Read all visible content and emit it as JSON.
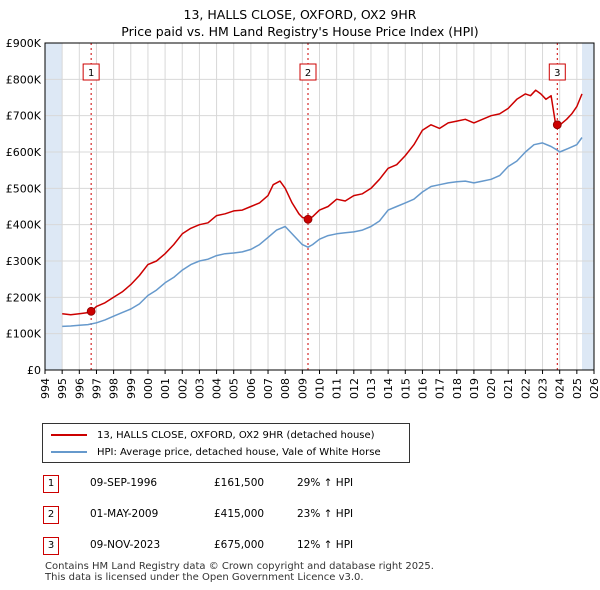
{
  "title": "13, HALLS CLOSE, OXFORD, OX2 9HR",
  "subtitle": "Price paid vs. HM Land Registry's House Price Index (HPI)",
  "colors": {
    "property": "#cc0000",
    "hpi": "#6699cc",
    "shade": "#dde8f5",
    "grid": "#d8d8d8",
    "marker_line": "#cc0000"
  },
  "chart_data": {
    "type": "line",
    "xlim": [
      1994,
      2026
    ],
    "ylim": [
      0,
      900000
    ],
    "x_ticks": [
      "1994",
      "1995",
      "1996",
      "1997",
      "1998",
      "1999",
      "2000",
      "2001",
      "2002",
      "2003",
      "2004",
      "2005",
      "2006",
      "2007",
      "2008",
      "2009",
      "2010",
      "2011",
      "2012",
      "2013",
      "2014",
      "2015",
      "2016",
      "2017",
      "2018",
      "2019",
      "2020",
      "2021",
      "2022",
      "2023",
      "2024",
      "2025",
      "2026"
    ],
    "y_ticks": [
      {
        "value": 0,
        "label": "£0"
      },
      {
        "value": 100000,
        "label": "£100K"
      },
      {
        "value": 200000,
        "label": "£200K"
      },
      {
        "value": 300000,
        "label": "£300K"
      },
      {
        "value": 400000,
        "label": "£400K"
      },
      {
        "value": 500000,
        "label": "£500K"
      },
      {
        "value": 600000,
        "label": "£600K"
      },
      {
        "value": 700000,
        "label": "£700K"
      },
      {
        "value": 800000,
        "label": "£800K"
      },
      {
        "value": 900000,
        "label": "£900K"
      }
    ],
    "data_range": [
      1995,
      2025.3
    ],
    "series": [
      {
        "name": "13, HALLS CLOSE, OXFORD, OX2 9HR (detached house)",
        "x": [
          1995.0,
          1995.5,
          1996.0,
          1996.5,
          1996.69,
          1997.0,
          1997.5,
          1998.0,
          1998.5,
          1999.0,
          1999.5,
          2000.0,
          2000.5,
          2001.0,
          2001.5,
          2002.0,
          2002.5,
          2003.0,
          2003.5,
          2004.0,
          2004.5,
          2005.0,
          2005.5,
          2006.0,
          2006.5,
          2007.0,
          2007.3,
          2007.7,
          2008.0,
          2008.4,
          2008.8,
          2009.0,
          2009.33,
          2009.6,
          2010.0,
          2010.5,
          2011.0,
          2011.5,
          2012.0,
          2012.5,
          2013.0,
          2013.5,
          2014.0,
          2014.5,
          2015.0,
          2015.5,
          2016.0,
          2016.5,
          2017.0,
          2017.5,
          2018.0,
          2018.5,
          2019.0,
          2019.5,
          2020.0,
          2020.5,
          2021.0,
          2021.5,
          2022.0,
          2022.3,
          2022.6,
          2022.9,
          2023.2,
          2023.5,
          2023.75,
          2023.86,
          2024.1,
          2024.4,
          2024.7,
          2025.0,
          2025.3
        ],
        "values": [
          155000,
          152000,
          155000,
          158000,
          161500,
          175000,
          185000,
          200000,
          215000,
          235000,
          260000,
          290000,
          300000,
          320000,
          345000,
          375000,
          390000,
          400000,
          405000,
          425000,
          430000,
          438000,
          440000,
          450000,
          460000,
          480000,
          510000,
          520000,
          500000,
          460000,
          430000,
          420000,
          415000,
          422000,
          440000,
          450000,
          470000,
          465000,
          480000,
          485000,
          500000,
          525000,
          555000,
          565000,
          590000,
          620000,
          660000,
          675000,
          665000,
          680000,
          685000,
          690000,
          680000,
          690000,
          700000,
          705000,
          720000,
          745000,
          760000,
          755000,
          770000,
          760000,
          745000,
          755000,
          680000,
          675000,
          678000,
          690000,
          705000,
          725000,
          760000
        ]
      },
      {
        "name": "HPI: Average price, detached house, Vale of White Horse",
        "x": [
          1995.0,
          1995.5,
          1996.0,
          1996.5,
          1997.0,
          1997.5,
          1998.0,
          1998.5,
          1999.0,
          1999.5,
          2000.0,
          2000.5,
          2001.0,
          2001.5,
          2002.0,
          2002.5,
          2003.0,
          2003.5,
          2004.0,
          2004.5,
          2005.0,
          2005.5,
          2006.0,
          2006.5,
          2007.0,
          2007.5,
          2008.0,
          2008.5,
          2009.0,
          2009.33,
          2009.6,
          2010.0,
          2010.5,
          2011.0,
          2011.5,
          2012.0,
          2012.5,
          2013.0,
          2013.5,
          2014.0,
          2014.5,
          2015.0,
          2015.5,
          2016.0,
          2016.5,
          2017.0,
          2017.5,
          2018.0,
          2018.5,
          2019.0,
          2019.5,
          2020.0,
          2020.5,
          2021.0,
          2021.5,
          2022.0,
          2022.5,
          2023.0,
          2023.5,
          2023.86,
          2024.0,
          2024.5,
          2025.0,
          2025.3
        ],
        "values": [
          120000,
          121000,
          123000,
          125000,
          130000,
          138000,
          148000,
          158000,
          168000,
          182000,
          205000,
          220000,
          240000,
          255000,
          275000,
          290000,
          300000,
          305000,
          315000,
          320000,
          322000,
          325000,
          332000,
          345000,
          365000,
          385000,
          395000,
          370000,
          345000,
          338000,
          345000,
          360000,
          370000,
          375000,
          378000,
          380000,
          385000,
          395000,
          410000,
          440000,
          450000,
          460000,
          470000,
          490000,
          505000,
          510000,
          515000,
          518000,
          520000,
          515000,
          520000,
          525000,
          535000,
          560000,
          575000,
          600000,
          620000,
          625000,
          615000,
          605000,
          600000,
          610000,
          620000,
          640000
        ]
      }
    ],
    "sales": [
      {
        "label": "1",
        "x": 1996.69,
        "value": 161500
      },
      {
        "label": "2",
        "x": 2009.33,
        "value": 415000
      },
      {
        "label": "3",
        "x": 2023.86,
        "value": 675000
      }
    ]
  },
  "legend": [
    {
      "label": "13, HALLS CLOSE, OXFORD, OX2 9HR (detached house)"
    },
    {
      "label": "HPI: Average price, detached house, Vale of White Horse"
    }
  ],
  "sales_table": [
    {
      "num": "1",
      "date": "09-SEP-1996",
      "price": "£161,500",
      "hpi": "29% ↑ HPI"
    },
    {
      "num": "2",
      "date": "01-MAY-2009",
      "price": "£415,000",
      "hpi": "23% ↑ HPI"
    },
    {
      "num": "3",
      "date": "09-NOV-2023",
      "price": "£675,000",
      "hpi": "12% ↑ HPI"
    }
  ],
  "footer": {
    "line1": "Contains HM Land Registry data © Crown copyright and database right 2025.",
    "line2": "This data is licensed under the Open Government Licence v3.0."
  }
}
